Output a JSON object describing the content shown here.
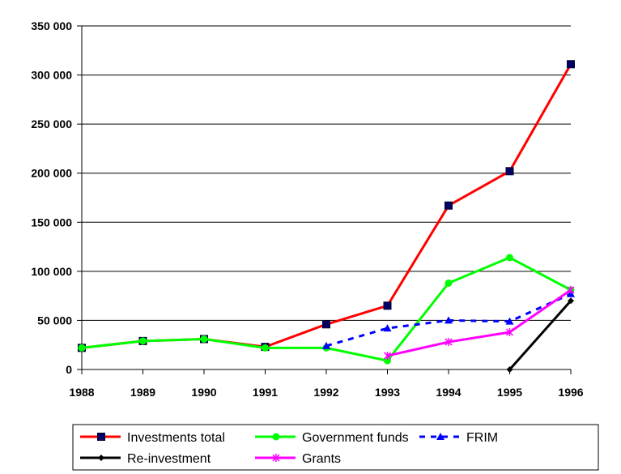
{
  "chart_data": {
    "type": "line",
    "title": "",
    "xlabel": "",
    "ylabel": "",
    "x": [
      "1988",
      "1989",
      "1990",
      "1991",
      "1992",
      "1993",
      "1994",
      "1995",
      "1996"
    ],
    "ylim": [
      0,
      350000
    ],
    "yticks": [
      0,
      50000,
      100000,
      150000,
      200000,
      250000,
      300000,
      350000
    ],
    "ytick_labels": [
      "0",
      "50 000",
      "100 000",
      "150 000",
      "200 000",
      "250 000",
      "300 000",
      "350 000"
    ],
    "grid": "horizontal",
    "legend_position": "bottom",
    "series": [
      {
        "name": "Investments total",
        "color": "#ff0000",
        "marker": "square",
        "marker_color": "#000066",
        "dash": "solid",
        "values": [
          22000,
          29000,
          31000,
          23000,
          46000,
          65000,
          167000,
          202000,
          311000
        ]
      },
      {
        "name": "Government funds",
        "color": "#00ff00",
        "marker": "circle",
        "marker_color": "#00ff00",
        "dash": "solid",
        "values": [
          22000,
          29000,
          31000,
          22000,
          22000,
          9000,
          88000,
          114000,
          81000
        ]
      },
      {
        "name": "FRIM",
        "color": "#0000ff",
        "marker": "triangle",
        "marker_color": "#0000ff",
        "dash": "dashed",
        "values": [
          null,
          null,
          null,
          null,
          24000,
          42000,
          50000,
          49000,
          77000
        ]
      },
      {
        "name": "Re-investment",
        "color": "#000000",
        "marker": "diamond",
        "marker_color": "#000000",
        "dash": "solid",
        "values": [
          null,
          null,
          null,
          null,
          null,
          null,
          null,
          0,
          70000
        ]
      },
      {
        "name": "Grants",
        "color": "#ff00ff",
        "marker": "star",
        "marker_color": "#ff00ff",
        "dash": "solid",
        "values": [
          null,
          null,
          null,
          null,
          null,
          14000,
          28000,
          38000,
          81000
        ]
      }
    ]
  }
}
